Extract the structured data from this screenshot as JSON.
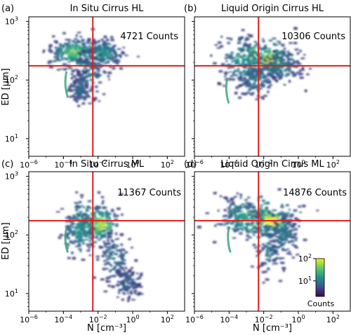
{
  "figure": {
    "xlabel": "N [cm⁻³]",
    "ylabel": "ED [μm]",
    "colorbar": {
      "title": "Counts",
      "ticks": [
        {
          "label": "10",
          "exp": "2",
          "value": 100
        },
        {
          "label": "10",
          "exp": "1",
          "value": 10
        }
      ],
      "colormap": [
        "#440154",
        "#3b528b",
        "#21918c",
        "#5ec962",
        "#fde725"
      ]
    },
    "line_color": "#e41a1c"
  },
  "chart_data": [
    {
      "type": "heatmap",
      "panel_label": "(a)",
      "title": "In Situ Cirrus HL",
      "count_label": "4721 Counts",
      "xscale": "log",
      "yscale": "log",
      "xlim": [
        1e-06,
        1000.0
      ],
      "ylim": [
        5,
        1200
      ],
      "xticks": [
        {
          "label": "10",
          "exp": "−6",
          "value": 1e-06
        },
        {
          "label": "10",
          "exp": "−4",
          "value": 0.0001
        },
        {
          "label": "10",
          "exp": "−2",
          "value": 0.01
        },
        {
          "label": "10",
          "exp": "0",
          "value": 1
        },
        {
          "label": "10",
          "exp": "2",
          "value": 100
        }
      ],
      "yticks": [
        {
          "label": "10",
          "exp": "1",
          "value": 10
        },
        {
          "label": "10",
          "exp": "2",
          "value": 100
        },
        {
          "label": "10",
          "exp": "3",
          "value": 1000
        }
      ],
      "vline_x": 0.005,
      "hline_y": 175,
      "blobs": [
        {
          "x": 0.0015,
          "y": 260,
          "sx": 1.1,
          "sy": 0.16,
          "level": 0.45
        },
        {
          "x": 0.0004,
          "y": 300,
          "sx": 0.6,
          "sy": 0.1,
          "level": 0.6
        },
        {
          "x": 0.02,
          "y": 280,
          "sx": 0.5,
          "sy": 0.12,
          "level": 0.35
        },
        {
          "x": 0.003,
          "y": 120,
          "sx": 0.45,
          "sy": 0.22,
          "level": 0.25
        },
        {
          "x": 0.0008,
          "y": 70,
          "sx": 0.25,
          "sy": 0.14,
          "level": 0.2
        }
      ],
      "streak": {
        "x": 0.00015,
        "y1": 50,
        "y2": 140
      }
    },
    {
      "type": "heatmap",
      "panel_label": "(b)",
      "title": "Liquid Origin Cirrus HL",
      "count_label": "10306 Counts",
      "xscale": "log",
      "yscale": "log",
      "xlim": [
        1e-06,
        1000.0
      ],
      "ylim": [
        5,
        1200
      ],
      "xticks": [
        {
          "label": "10",
          "exp": "−6",
          "value": 1e-06
        },
        {
          "label": "10",
          "exp": "−4",
          "value": 0.0001
        },
        {
          "label": "10",
          "exp": "−2",
          "value": 0.01
        },
        {
          "label": "10",
          "exp": "0",
          "value": 1
        },
        {
          "label": "10",
          "exp": "2",
          "value": 100
        }
      ],
      "yticks": [
        {
          "label": "10",
          "exp": "1",
          "value": 10
        },
        {
          "label": "10",
          "exp": "2",
          "value": 100
        },
        {
          "label": "10",
          "exp": "3",
          "value": 1000
        }
      ],
      "vline_x": 0.005,
      "hline_y": 175,
      "blobs": [
        {
          "x": 0.005,
          "y": 240,
          "sx": 1.1,
          "sy": 0.2,
          "level": 0.6
        },
        {
          "x": 0.02,
          "y": 210,
          "sx": 0.6,
          "sy": 0.12,
          "level": 0.8
        },
        {
          "x": 0.0008,
          "y": 180,
          "sx": 0.6,
          "sy": 0.2,
          "level": 0.35
        },
        {
          "x": 0.1,
          "y": 160,
          "sx": 0.6,
          "sy": 0.1,
          "level": 0.3
        },
        {
          "x": 0.004,
          "y": 100,
          "sx": 0.5,
          "sy": 0.15,
          "level": 0.25
        }
      ],
      "streak": {
        "x": 8e-05,
        "y1": 40,
        "y2": 110
      }
    },
    {
      "type": "heatmap",
      "panel_label": "(c)",
      "title": "In Situ Cirrus ML",
      "count_label": "11367 Counts",
      "xscale": "log",
      "yscale": "log",
      "xlim": [
        1e-06,
        1000.0
      ],
      "ylim": [
        5,
        1200
      ],
      "xticks": [
        {
          "label": "10",
          "exp": "−6",
          "value": 1e-06
        },
        {
          "label": "10",
          "exp": "−4",
          "value": 0.0001
        },
        {
          "label": "10",
          "exp": "−2",
          "value": 0.01
        },
        {
          "label": "10",
          "exp": "0",
          "value": 1
        },
        {
          "label": "10",
          "exp": "2",
          "value": 100
        }
      ],
      "yticks": [
        {
          "label": "10",
          "exp": "1",
          "value": 10
        },
        {
          "label": "10",
          "exp": "2",
          "value": 100
        },
        {
          "label": "10",
          "exp": "3",
          "value": 1000
        }
      ],
      "vline_x": 0.005,
      "hline_y": 175,
      "blobs": [
        {
          "x": 0.004,
          "y": 160,
          "sx": 0.75,
          "sy": 0.22,
          "level": 0.6
        },
        {
          "x": 0.015,
          "y": 150,
          "sx": 0.45,
          "sy": 0.14,
          "level": 0.75
        },
        {
          "x": 0.0008,
          "y": 120,
          "sx": 0.4,
          "sy": 0.22,
          "level": 0.35
        },
        {
          "x": 0.08,
          "y": 40,
          "sx": 0.45,
          "sy": 0.2,
          "level": 0.22
        },
        {
          "x": 0.5,
          "y": 15,
          "sx": 0.4,
          "sy": 0.14,
          "level": 0.15
        }
      ],
      "streak": {
        "x": 0.00015,
        "y1": 50,
        "y2": 130
      }
    },
    {
      "type": "heatmap",
      "panel_label": "(d)",
      "title": "Liquid Origin Cirrus ML",
      "count_label": "14876 Counts",
      "xscale": "log",
      "yscale": "log",
      "xlim": [
        1e-06,
        1000.0
      ],
      "ylim": [
        5,
        1200
      ],
      "xticks": [
        {
          "label": "10",
          "exp": "−6",
          "value": 1e-06
        },
        {
          "label": "10",
          "exp": "−4",
          "value": 0.0001
        },
        {
          "label": "10",
          "exp": "−2",
          "value": 0.01
        },
        {
          "label": "10",
          "exp": "0",
          "value": 1
        },
        {
          "label": "10",
          "exp": "2",
          "value": 100
        }
      ],
      "yticks": [
        {
          "label": "10",
          "exp": "1",
          "value": 10
        },
        {
          "label": "10",
          "exp": "2",
          "value": 100
        },
        {
          "label": "10",
          "exp": "3",
          "value": 1000
        }
      ],
      "vline_x": 0.005,
      "hline_y": 175,
      "blobs": [
        {
          "x": 0.005,
          "y": 200,
          "sx": 1.2,
          "sy": 0.2,
          "level": 0.6
        },
        {
          "x": 0.03,
          "y": 170,
          "sx": 0.55,
          "sy": 0.1,
          "level": 0.95
        },
        {
          "x": 0.0006,
          "y": 190,
          "sx": 0.5,
          "sy": 0.16,
          "level": 0.4
        },
        {
          "x": 0.02,
          "y": 60,
          "sx": 0.4,
          "sy": 0.3,
          "level": 0.22
        },
        {
          "x": 0.15,
          "y": 100,
          "sx": 0.4,
          "sy": 0.2,
          "level": 0.25
        }
      ],
      "streak": {
        "x": 0.0001,
        "y1": 50,
        "y2": 140
      }
    }
  ]
}
